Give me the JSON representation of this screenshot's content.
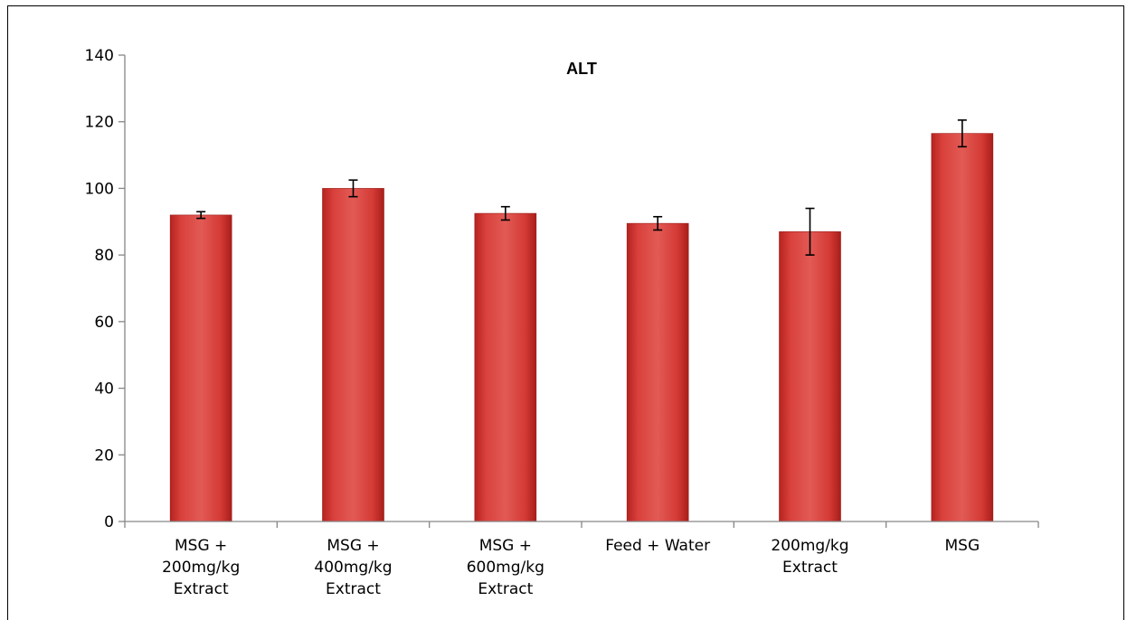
{
  "chart_data": {
    "type": "bar",
    "title": "ALT",
    "xlabel": "",
    "ylabel": "",
    "ylim": [
      0,
      140
    ],
    "yticks": [
      0,
      20,
      40,
      60,
      80,
      100,
      120,
      140
    ],
    "grid": false,
    "legend": "none",
    "categories": [
      [
        "MSG +",
        "200mg/kg",
        "Extract"
      ],
      [
        "MSG +",
        "400mg/kg",
        "Extract"
      ],
      [
        "MSG +",
        "600mg/kg",
        "Extract"
      ],
      [
        "Feed + Water"
      ],
      [
        "200mg/kg",
        "Extract"
      ],
      [
        "MSG"
      ]
    ],
    "series": [
      {
        "values": [
          92,
          100,
          92.5,
          89.5,
          87,
          116.5
        ],
        "error": [
          1,
          2.5,
          2,
          2,
          7,
          4
        ],
        "color": "#d9413c"
      }
    ]
  }
}
